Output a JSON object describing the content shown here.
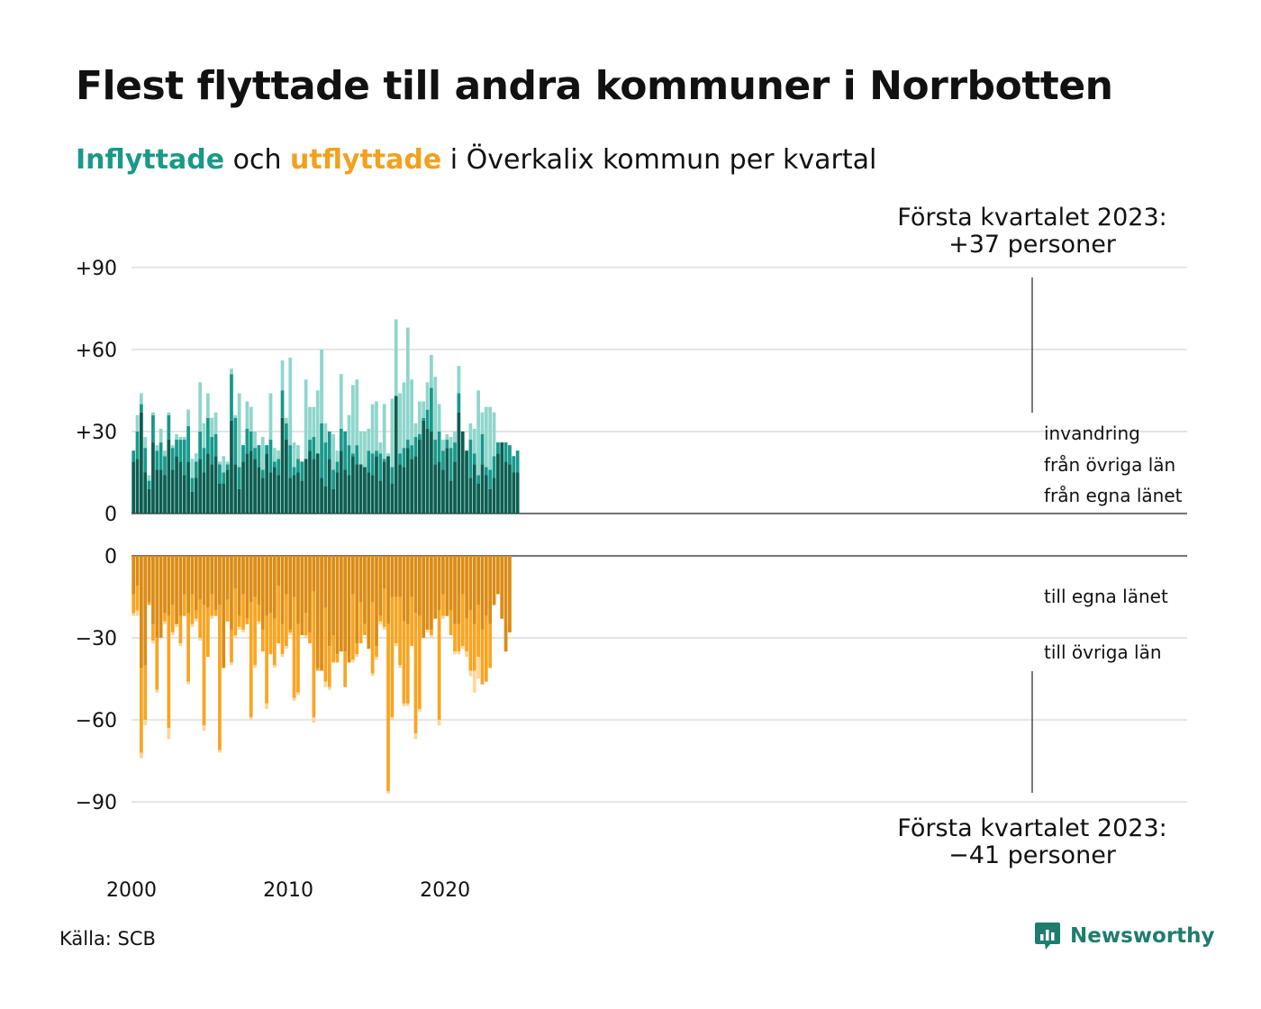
{
  "title": "Flest flyttade till andra kommuner i Norrbotten",
  "subtitle": {
    "in_label": "Inflyttade",
    "connector": " och ",
    "out_label": "utflyttade",
    "rest": " i Överkalix kommun per kvartal"
  },
  "annotations": {
    "top_line1": "Första kvartalet 2023:",
    "top_line2": "+37 personer",
    "bottom_line1": "Första kvartalet 2023:",
    "bottom_line2": "−41 personer"
  },
  "source": "Källa: SCB",
  "brand": "Newsworthy",
  "colors": {
    "in_dark": "#0c5e52",
    "in_mid": "#16998a",
    "in_light": "#8fd6cc",
    "out_dark": "#db8c15",
    "out_mid": "#f8a522",
    "out_light": "#fbd79a",
    "grid": "#e4e4e4",
    "logo": "#1f7d6e"
  },
  "chart_data": {
    "type": "bar",
    "stacked": true,
    "x_start": "2000 Q1",
    "x_end": "2023 Q1",
    "xticks": [
      "2000",
      "2010",
      "2020"
    ],
    "top_panel": {
      "yticks": [
        "0",
        "+30",
        "+60",
        "+90"
      ],
      "ylim": [
        0,
        90
      ],
      "series_labels": [
        "från egna länet",
        "från övriga län",
        "invandring"
      ],
      "series": [
        {
          "name": "från egna länet",
          "values": [
            19,
            20,
            37,
            15,
            9,
            26,
            16,
            16,
            14,
            27,
            16,
            21,
            19,
            14,
            19,
            8,
            13,
            20,
            15,
            22,
            18,
            21,
            11,
            11,
            16,
            34,
            18,
            9,
            19,
            22,
            23,
            20,
            17,
            13,
            22,
            15,
            17,
            14,
            35,
            27,
            13,
            14,
            15,
            12,
            20,
            23,
            20,
            22,
            13,
            10,
            20,
            9,
            15,
            23,
            16,
            14,
            21,
            18,
            18,
            17,
            15,
            14,
            21,
            12,
            19,
            21,
            11,
            43,
            18,
            17,
            24,
            20,
            21,
            27,
            34,
            31,
            30,
            18,
            19,
            16,
            24,
            12,
            19,
            37,
            30,
            23,
            13,
            18,
            11,
            18,
            14,
            9,
            13,
            22,
            26,
            19,
            18,
            15,
            15
          ]
        },
        {
          "name": "från övriga län",
          "values": [
            23,
            30,
            40,
            24,
            12,
            36,
            23,
            26,
            21,
            36,
            24,
            27,
            27,
            27,
            32,
            13,
            19,
            30,
            24,
            35,
            28,
            29,
            18,
            15,
            18,
            51,
            35,
            17,
            25,
            31,
            30,
            24,
            25,
            16,
            25,
            27,
            19,
            20,
            45,
            33,
            25,
            17,
            20,
            19,
            20,
            27,
            28,
            20,
            33,
            26,
            30,
            16,
            19,
            31,
            30,
            25,
            22,
            25,
            17,
            14,
            23,
            22,
            23,
            22,
            20,
            19,
            17,
            43,
            22,
            24,
            27,
            25,
            28,
            29,
            35,
            38,
            46,
            27,
            30,
            23,
            27,
            24,
            26,
            44,
            27,
            21,
            27,
            22,
            14,
            29,
            17,
            16,
            21,
            26,
            26,
            26,
            25,
            21,
            23
          ]
        },
        {
          "name": "invandring",
          "values": [
            23,
            36,
            44,
            28,
            14,
            37,
            25,
            31,
            23,
            37,
            25,
            29,
            28,
            28,
            38,
            20,
            22,
            48,
            33,
            44,
            35,
            37,
            19,
            21,
            19,
            53,
            36,
            44,
            25,
            41,
            39,
            30,
            22,
            28,
            20,
            44,
            24,
            23,
            56,
            35,
            57,
            26,
            25,
            18,
            49,
            39,
            39,
            45,
            60,
            33,
            27,
            29,
            23,
            51,
            18,
            36,
            47,
            49,
            30,
            30,
            31,
            40,
            41,
            26,
            40,
            22,
            42,
            71,
            44,
            48,
            68,
            49,
            33,
            41,
            41,
            48,
            58,
            50,
            40,
            27,
            29,
            28,
            30,
            54,
            29,
            21,
            33,
            31,
            45,
            37,
            39,
            39,
            37
          ]
        }
      ]
    },
    "bottom_panel": {
      "yticks": [
        "0",
        "−30",
        "−60",
        "−90"
      ],
      "ylim": [
        -90,
        0
      ],
      "series_labels": [
        "till egna länet",
        "till övriga län"
      ],
      "series": [
        {
          "name": "till egna länet",
          "values": [
            -14,
            -11,
            -41,
            -40,
            -17,
            -25,
            -30,
            -30,
            -21,
            -22,
            -18,
            -25,
            -22,
            -14,
            -21,
            -14,
            -20,
            -16,
            -18,
            -19,
            -14,
            -20,
            -18,
            -41,
            -16,
            -27,
            -12,
            -22,
            -14,
            -23,
            -17,
            -15,
            -18,
            -27,
            -22,
            -21,
            -23,
            -11,
            -25,
            -14,
            -27,
            -15,
            -25,
            -29,
            -21,
            -28,
            -13,
            -41,
            -42,
            -19,
            -33,
            -29,
            -36,
            -35,
            -35,
            -39,
            -14,
            -32,
            -17,
            -25,
            -34,
            -17,
            -33,
            -22,
            -12,
            -25,
            -15,
            -15,
            -15,
            -24,
            -25,
            -15,
            -21,
            -22,
            -30,
            -27,
            -27,
            -23,
            -20,
            -14,
            -22,
            -20,
            -25,
            -25,
            -14,
            -23,
            -20,
            -25,
            -18,
            -27,
            -22,
            -25,
            -18,
            -14,
            -23,
            -35,
            -28
          ]
        },
        {
          "name": "till övriga län",
          "values": [
            -21,
            -20,
            -72,
            -60,
            -18,
            -31,
            -49,
            -28,
            -24,
            -63,
            -28,
            -25,
            -32,
            -22,
            -46,
            -25,
            -23,
            -30,
            -62,
            -37,
            -22,
            -22,
            -71,
            -29,
            -24,
            -39,
            -29,
            -26,
            -27,
            -25,
            -59,
            -40,
            -24,
            -35,
            -54,
            -36,
            -40,
            -32,
            -36,
            -33,
            -28,
            -52,
            -50,
            -22,
            -29,
            -32,
            -59,
            -42,
            -30,
            -46,
            -48,
            -39,
            -39,
            -24,
            -48,
            -29,
            -38,
            -36,
            -32,
            -29,
            -24,
            -43,
            -37,
            -24,
            -26,
            -86,
            -59,
            -32,
            -40,
            -54,
            -54,
            -33,
            -65,
            -56,
            -29,
            -27,
            -29,
            -22,
            -60,
            -22,
            -21,
            -29,
            -35,
            -35,
            -33,
            -35,
            -42,
            -42,
            -37,
            -47,
            -46,
            -41
          ]
        },
        {
          "name": "out_total_light",
          "values": [
            -22,
            -22,
            -74,
            -62,
            -18,
            -32,
            -50,
            -30,
            -25,
            -67,
            -29,
            -26,
            -33,
            -22,
            -47,
            -26,
            -24,
            -31,
            -64,
            -37,
            -23,
            -22,
            -72,
            -30,
            -24,
            -40,
            -30,
            -27,
            -28,
            -25,
            -60,
            -41,
            -25,
            -35,
            -56,
            -36,
            -41,
            -32,
            -37,
            -34,
            -29,
            -53,
            -51,
            -22,
            -30,
            -32,
            -61,
            -42,
            -31,
            -48,
            -49,
            -39,
            -39,
            -25,
            -48,
            -30,
            -39,
            -37,
            -32,
            -29,
            -25,
            -44,
            -38,
            -25,
            -27,
            -87,
            -60,
            -33,
            -41,
            -55,
            -55,
            -33,
            -67,
            -57,
            -30,
            -28,
            -30,
            -23,
            -62,
            -23,
            -22,
            -29,
            -36,
            -36,
            -34,
            -37,
            -44,
            -50,
            -45,
            -47,
            -46,
            -41
          ]
        }
      ]
    }
  }
}
